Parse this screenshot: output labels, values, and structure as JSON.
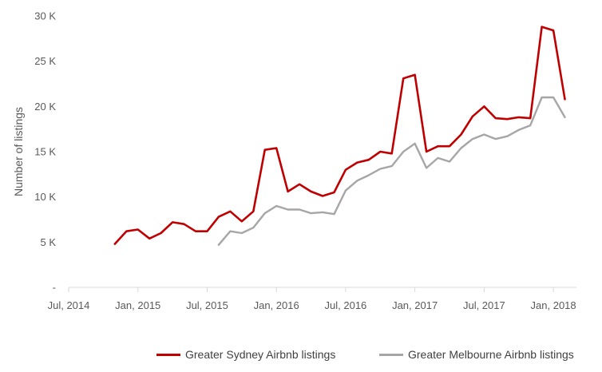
{
  "chart_data": {
    "type": "line",
    "title": "",
    "xlabel": "",
    "ylabel": "Number of listings",
    "ylim": [
      0,
      30000
    ],
    "y_ticks": [
      0,
      5000,
      10000,
      15000,
      20000,
      25000,
      30000
    ],
    "y_tick_labels": [
      "-",
      "5 K",
      "10 K",
      "15 K",
      "20 K",
      "25 K",
      "30 K"
    ],
    "x_range": [
      "2014-07",
      "2018-03"
    ],
    "x_ticks": [
      "2014-07",
      "2015-01",
      "2015-07",
      "2016-01",
      "2016-07",
      "2017-01",
      "2017-07",
      "2018-01"
    ],
    "x_tick_labels": [
      "Jul, 2014",
      "Jan, 2015",
      "Jul, 2015",
      "Jan, 2016",
      "Jul, 2016",
      "Jan, 2017",
      "Jul, 2017",
      "Jan, 2018"
    ],
    "grid": false,
    "legend_position": "bottom",
    "series": [
      {
        "name": "Greater Sydney Airbnb listings",
        "color": "#c00000",
        "x": [
          "2014-11",
          "2014-12",
          "2015-01",
          "2015-02",
          "2015-03",
          "2015-04",
          "2015-05",
          "2015-06",
          "2015-07",
          "2015-08",
          "2015-09",
          "2015-10",
          "2015-11",
          "2015-12",
          "2016-01",
          "2016-02",
          "2016-03",
          "2016-04",
          "2016-05",
          "2016-06",
          "2016-07",
          "2016-08",
          "2016-09",
          "2016-10",
          "2016-11",
          "2016-12",
          "2017-01",
          "2017-02",
          "2017-03",
          "2017-04",
          "2017-05",
          "2017-06",
          "2017-07",
          "2017-08",
          "2017-09",
          "2017-10",
          "2017-11",
          "2017-12",
          "2018-01",
          "2018-02"
        ],
        "values": [
          4800,
          6200,
          6400,
          5400,
          6000,
          7200,
          7000,
          6200,
          6200,
          7800,
          8400,
          7300,
          8400,
          15200,
          15400,
          10600,
          11400,
          10600,
          10100,
          10500,
          13000,
          13800,
          14100,
          15000,
          14800,
          23100,
          23500,
          15000,
          15600,
          15600,
          16900,
          18900,
          20000,
          18700,
          18600,
          18800,
          18700,
          28800,
          28400,
          20800
        ]
      },
      {
        "name": "Greater Melbourne Airbnb listings",
        "color": "#a6a6a6",
        "x": [
          "2015-08",
          "2015-09",
          "2015-10",
          "2015-11",
          "2015-12",
          "2016-01",
          "2016-02",
          "2016-03",
          "2016-04",
          "2016-05",
          "2016-06",
          "2016-07",
          "2016-08",
          "2016-09",
          "2016-10",
          "2016-11",
          "2016-12",
          "2017-01",
          "2017-02",
          "2017-03",
          "2017-04",
          "2017-05",
          "2017-06",
          "2017-07",
          "2017-08",
          "2017-09",
          "2017-10",
          "2017-11",
          "2017-12",
          "2018-01",
          "2018-02"
        ],
        "values": [
          4700,
          6200,
          6000,
          6600,
          8200,
          9000,
          8600,
          8600,
          8200,
          8300,
          8100,
          10700,
          11800,
          12400,
          13100,
          13400,
          15000,
          15900,
          13200,
          14300,
          13900,
          15400,
          16400,
          16900,
          16400,
          16700,
          17400,
          17900,
          21000,
          21000,
          18800
        ]
      }
    ]
  }
}
